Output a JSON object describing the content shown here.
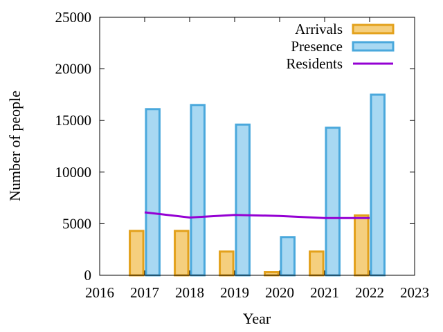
{
  "chart_data": {
    "type": "bar",
    "xlabel": "Year",
    "ylabel": "Number of people",
    "xlim": [
      2016,
      2023
    ],
    "ylim": [
      0,
      25000
    ],
    "x_ticks": [
      "2016",
      "2017",
      "2018",
      "2019",
      "2020",
      "2021",
      "2022",
      "2023"
    ],
    "y_ticks": [
      "0",
      "5000",
      "10000",
      "15000",
      "20000",
      "25000"
    ],
    "categories": [
      2017,
      2018,
      2019,
      2020,
      2021,
      2022
    ],
    "series": [
      {
        "name": "Arrivals",
        "kind": "bar",
        "fill": "#f5cf7e",
        "stroke": "#e3a11c",
        "values": [
          4300,
          4300,
          2300,
          300,
          2300,
          5800
        ]
      },
      {
        "name": "Presence",
        "kind": "bar",
        "fill": "#a8d8f2",
        "stroke": "#4aa8dc",
        "values": [
          16100,
          16500,
          14600,
          3700,
          14300,
          17500
        ]
      },
      {
        "name": "Residents",
        "kind": "line",
        "color": "#9400d3",
        "values": [
          6100,
          5600,
          5850,
          5750,
          5550,
          5550
        ]
      }
    ],
    "legend": "top-right",
    "grid": false
  }
}
